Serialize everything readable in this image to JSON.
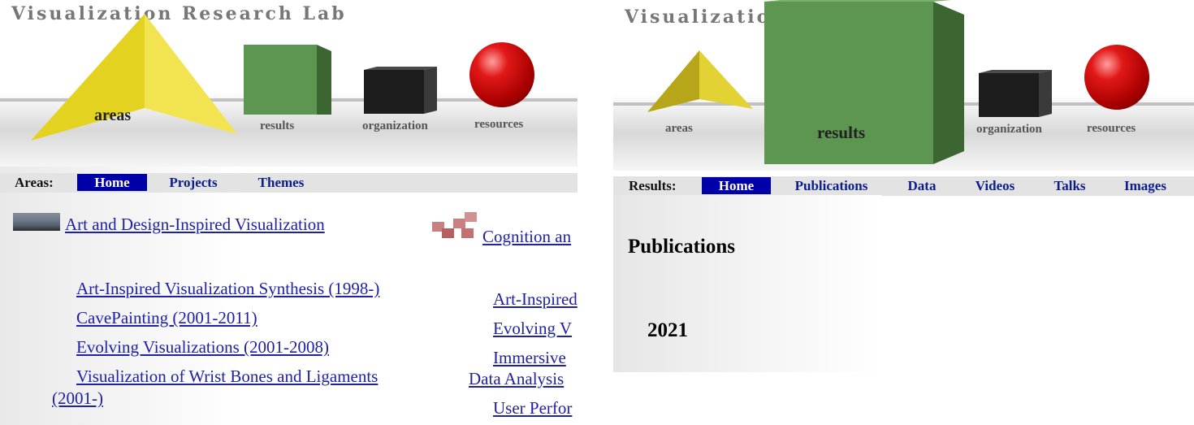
{
  "left": {
    "banner": {
      "title": "Visualization Research Lab",
      "labels": {
        "areas": "areas",
        "results": "results",
        "organization": "organization",
        "resources": "resources"
      }
    },
    "nav": {
      "label": "Areas:",
      "items": [
        {
          "label": "Home",
          "active": true
        },
        {
          "label": "Projects",
          "active": false
        },
        {
          "label": "Themes",
          "active": false
        }
      ]
    },
    "areas": [
      {
        "label": "Art and Design-Inspired Visualization"
      },
      {
        "label": "Cognition an"
      }
    ],
    "art_projects": [
      "Art-Inspired Visualization Synthesis (1998-)",
      "CavePainting (2001-2011)",
      "Evolving Visualizations (2001-2008)",
      "Visualization of Wrist Bones and Ligaments",
      "(2001-)"
    ],
    "cognition_projects": [
      "Art-Inspired",
      "Evolving V",
      "Immersive",
      "Data Analysis",
      "User Perfor"
    ]
  },
  "right": {
    "banner": {
      "title": "Visualizatio",
      "labels": {
        "areas": "areas",
        "results": "results",
        "organization": "organization",
        "resources": "resources"
      }
    },
    "nav": {
      "label": "Results:",
      "items": [
        {
          "label": "Home",
          "active": true
        },
        {
          "label": "Publications",
          "active": false
        },
        {
          "label": "Data",
          "active": false
        },
        {
          "label": "Videos",
          "active": false
        },
        {
          "label": "Talks",
          "active": false
        },
        {
          "label": "Images",
          "active": false
        }
      ]
    },
    "heading": "Publications",
    "year": "2021"
  },
  "colors": {
    "pyramid": "#e8d93a",
    "green_cube": "#5d9650",
    "black_cube": "#1d1d1d",
    "sphere": "#d11414",
    "nav_active": "#0000a8",
    "link": "#1f21a6"
  }
}
